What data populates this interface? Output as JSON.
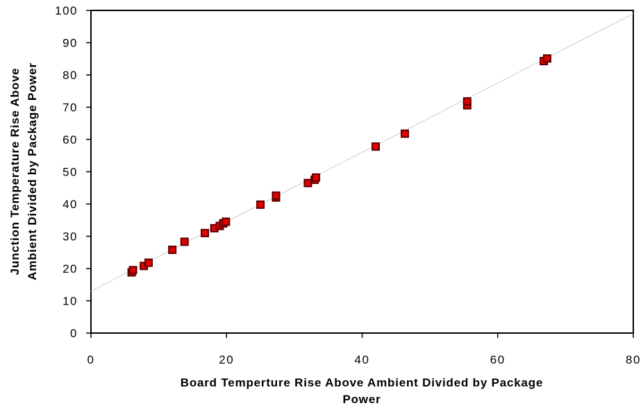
{
  "chart_data": {
    "type": "scatter",
    "title": "",
    "xlabel": [
      "Board  Temperture  Rise  Above  Ambient  Divided  by  Package",
      "Power"
    ],
    "ylabel": [
      "Junction  Temperature  Rise  Above",
      "Ambient  Divided  by  Package  Power"
    ],
    "xlim": [
      0,
      80
    ],
    "ylim": [
      0,
      100
    ],
    "x_ticks": [
      "0",
      "20",
      "40",
      "60",
      "80"
    ],
    "y_ticks": [
      "0",
      "10",
      "20",
      "30",
      "40",
      "50",
      "60",
      "70",
      "80",
      "90",
      "100"
    ],
    "grid": false,
    "legend": "none",
    "marker": {
      "shape": "square",
      "fill": "#e00000",
      "edge": "#5a0000"
    },
    "trendline": {
      "from": [
        0,
        13
      ],
      "to": [
        80,
        99
      ],
      "color": "#cccccc"
    },
    "points": [
      {
        "x": 6.0,
        "y": 18.8
      },
      {
        "x": 6.2,
        "y": 19.5
      },
      {
        "x": 7.8,
        "y": 20.8
      },
      {
        "x": 8.5,
        "y": 21.8
      },
      {
        "x": 12.0,
        "y": 25.8
      },
      {
        "x": 13.8,
        "y": 28.3
      },
      {
        "x": 16.8,
        "y": 31.0
      },
      {
        "x": 18.2,
        "y": 32.5
      },
      {
        "x": 19.0,
        "y": 33.2
      },
      {
        "x": 19.5,
        "y": 34.0
      },
      {
        "x": 19.9,
        "y": 34.5
      },
      {
        "x": 25.0,
        "y": 39.8
      },
      {
        "x": 27.3,
        "y": 42.0
      },
      {
        "x": 27.3,
        "y": 42.6
      },
      {
        "x": 32.0,
        "y": 46.5
      },
      {
        "x": 33.0,
        "y": 47.5
      },
      {
        "x": 33.2,
        "y": 48.2
      },
      {
        "x": 42.0,
        "y": 57.8
      },
      {
        "x": 46.3,
        "y": 61.8
      },
      {
        "x": 55.5,
        "y": 70.6
      },
      {
        "x": 55.5,
        "y": 71.8
      },
      {
        "x": 66.8,
        "y": 84.3
      },
      {
        "x": 67.3,
        "y": 85.1
      }
    ]
  }
}
